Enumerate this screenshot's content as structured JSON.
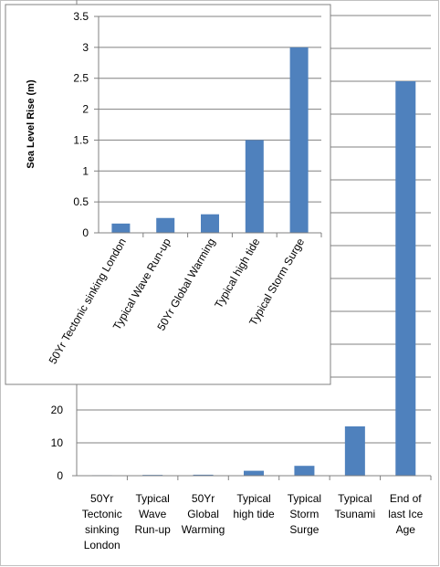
{
  "chart_data": [
    {
      "type": "bar",
      "categories": [
        [
          "50Yr",
          "Tectonic",
          "sinking",
          "London"
        ],
        [
          "Typical",
          "Wave",
          "Run-up"
        ],
        [
          "50Yr",
          "Global",
          "Warming"
        ],
        [
          "Typical",
          "high tide"
        ],
        [
          "Typical",
          "Storm",
          "Surge"
        ],
        [
          "Typical",
          "Tsunami"
        ],
        [
          "End of",
          "last Ice",
          "Age"
        ]
      ],
      "values": [
        0.15,
        0.24,
        0.3,
        1.5,
        3,
        15,
        120
      ],
      "visible_ticks": [
        0,
        10,
        20
      ],
      "ylim": [
        0,
        140
      ],
      "grid": true,
      "bar_color": "#4f81bd"
    },
    {
      "type": "bar",
      "categories": [
        "50Yr Tectonic sinking London",
        "Typical Wave Run-up",
        "50Yr Global Warming",
        "Typical high tide",
        "Typical Storm Surge"
      ],
      "values": [
        0.15,
        0.24,
        0.3,
        1.5,
        3
      ],
      "ylabel": "Sea Level Rise (m)",
      "ylim": [
        0,
        3.5
      ],
      "ticks": [
        0,
        0.5,
        1,
        1.5,
        2,
        2.5,
        3,
        3.5
      ],
      "grid": true,
      "bar_color": "#4f81bd"
    }
  ]
}
